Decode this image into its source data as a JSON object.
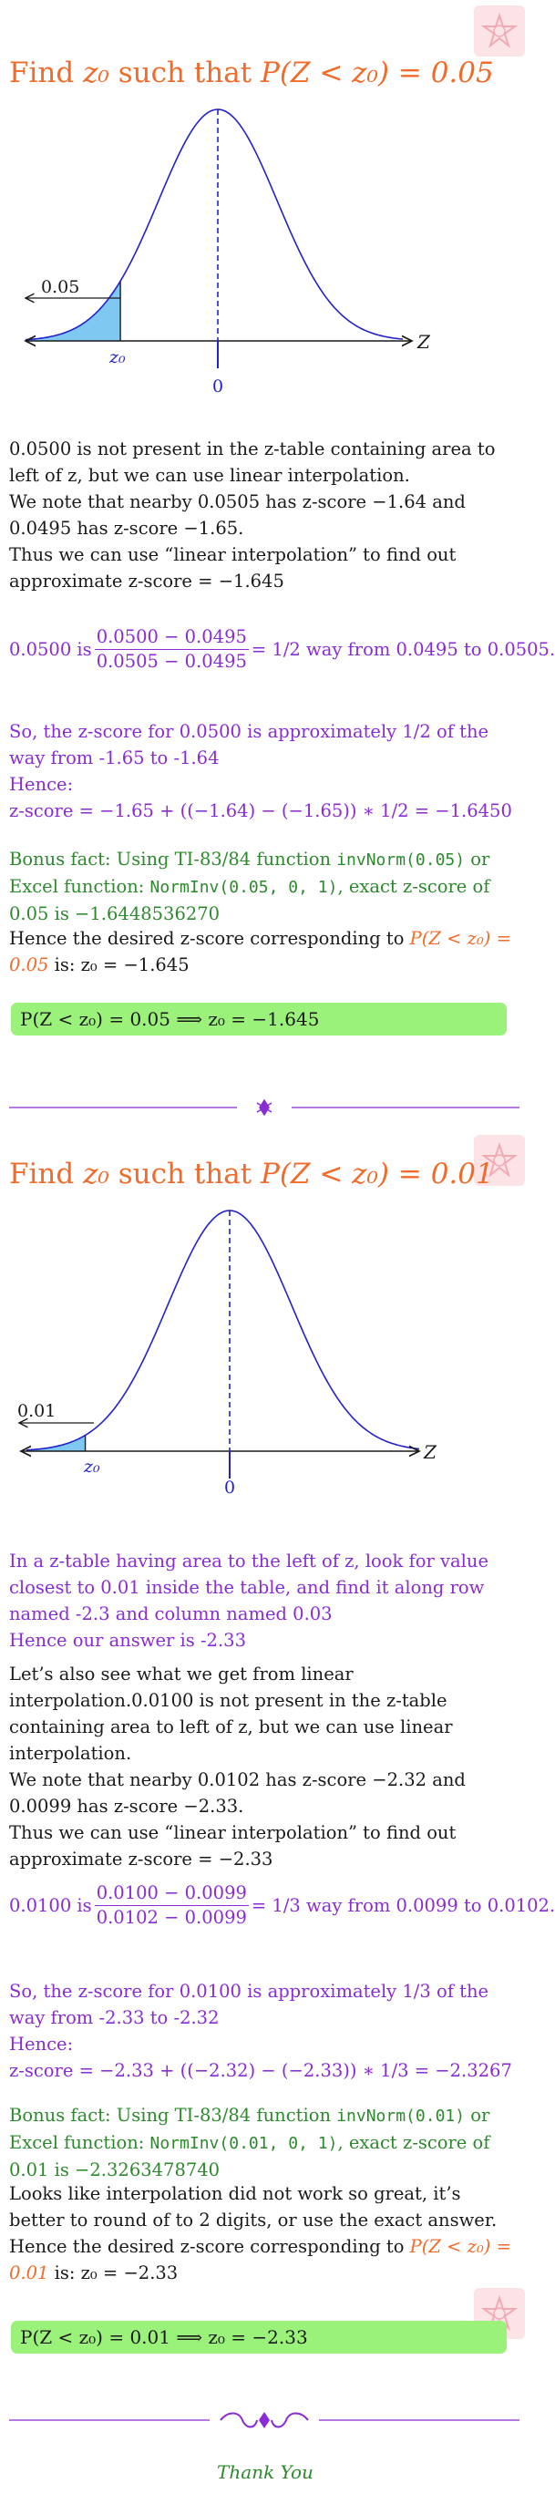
{
  "colors": {
    "title": "#f26b2a",
    "purple": "#8a2bd6",
    "green": "#2c8a2c",
    "answer_bg": "#9bf27a",
    "curve": "#2222cc",
    "shade": "#7fc8f2",
    "badge": "#fbe3e6"
  },
  "problems": [
    {
      "title_prefix": "Find ",
      "title_math": "z₀",
      "title_mid": " such that ",
      "title_expr": "P(Z < z₀) = 0.05",
      "graph": {
        "area_label": "0.05",
        "z0_label": "z₀",
        "zero_label": "0",
        "axis_label": "Z"
      },
      "para1": [
        "0.0500 is not present in the z-table containing area to left of z, but we can use linear interpolation.",
        "We note that nearby 0.0505 has z-score −1.64 and 0.0495 has z-score −1.65.",
        "Thus we can use “linear interpolation” to find out approximate z-score = −1.645"
      ],
      "interp": {
        "lead": "0.0500 is",
        "num": "0.0500 − 0.0495",
        "den": "0.0505 − 0.0495",
        "tail": "= 1/2 way from 0.0495 to 0.0505."
      },
      "so_lines": [
        "So, the z-score for 0.0500 is approximately 1/2 of the way from -1.65 to -1.64",
        "Hence:",
        "z-score = −1.65 + ((−1.64) − (−1.65)) ∗ 1/2 = −1.6450"
      ],
      "bonus": {
        "t1": "Bonus fact: Using TI-83/84 function ",
        "c1": "invNorm(0.05)",
        "t2": " or Excel function: ",
        "c2": "NormInv(0.05, 0, 1)",
        "t3": ", exact z-score of 0.05 is −1.6448536270"
      },
      "extra": "",
      "hence_prefix": "Hence the desired z-score corresponding to ",
      "hence_expr": "P(Z < z₀) = 0.05",
      "hence_suffix": " is: z₀ = −1.645",
      "answer": "P(Z < z₀) = 0.05 ⟹ z₀ = −1.645"
    },
    {
      "title_prefix": "Find ",
      "title_math": "z₀",
      "title_mid": " such that ",
      "title_expr": "P(Z < z₀) = 0.01",
      "graph": {
        "area_label": "0.01",
        "z0_label": "z₀",
        "zero_label": "0",
        "axis_label": "Z"
      },
      "ztable": [
        "In a z-table having area to the left of z, look for value closest to 0.01 inside the table, and find it along row named -2.3 and column named 0.03",
        "Hence our answer is -2.33"
      ],
      "para1": [
        "Let’s also see what we get from linear interpolation.0.0100 is not present in the z-table containing area to left of z, but we can use linear interpolation.",
        "We note that nearby 0.0102 has z-score −2.32 and 0.0099 has z-score −2.33.",
        "Thus we can use “linear interpolation” to find out approximate z-score = −2.33"
      ],
      "interp": {
        "lead": "0.0100 is",
        "num": "0.0100 − 0.0099",
        "den": "0.0102 − 0.0099",
        "tail": "= 1/3 way from 0.0099 to 0.0102."
      },
      "so_lines": [
        "So, the z-score for 0.0100 is approximately 1/3 of the way from -2.33 to -2.32",
        "Hence:",
        "z-score = −2.33 + ((−2.32) − (−2.33)) ∗ 1/3 = −2.3267"
      ],
      "bonus": {
        "t1": "Bonus fact: Using TI-83/84 function ",
        "c1": "invNorm(0.01)",
        "t2": " or Excel function: ",
        "c2": "NormInv(0.01, 0, 1)",
        "t3": ", exact z-score of 0.01 is −2.3263478740"
      },
      "extra": "Looks like interpolation did not work so great, it’s better to round of to 2 digits, or use the exact answer.",
      "hence_prefix": "Hence the desired z-score corresponding to ",
      "hence_expr": "P(Z < z₀) = 0.01",
      "hence_suffix": " is: z₀ = −2.33",
      "answer": "P(Z < z₀) = 0.01 ⟹ z₀ = −2.33"
    }
  ],
  "footer": {
    "thanks": "Thank You"
  }
}
